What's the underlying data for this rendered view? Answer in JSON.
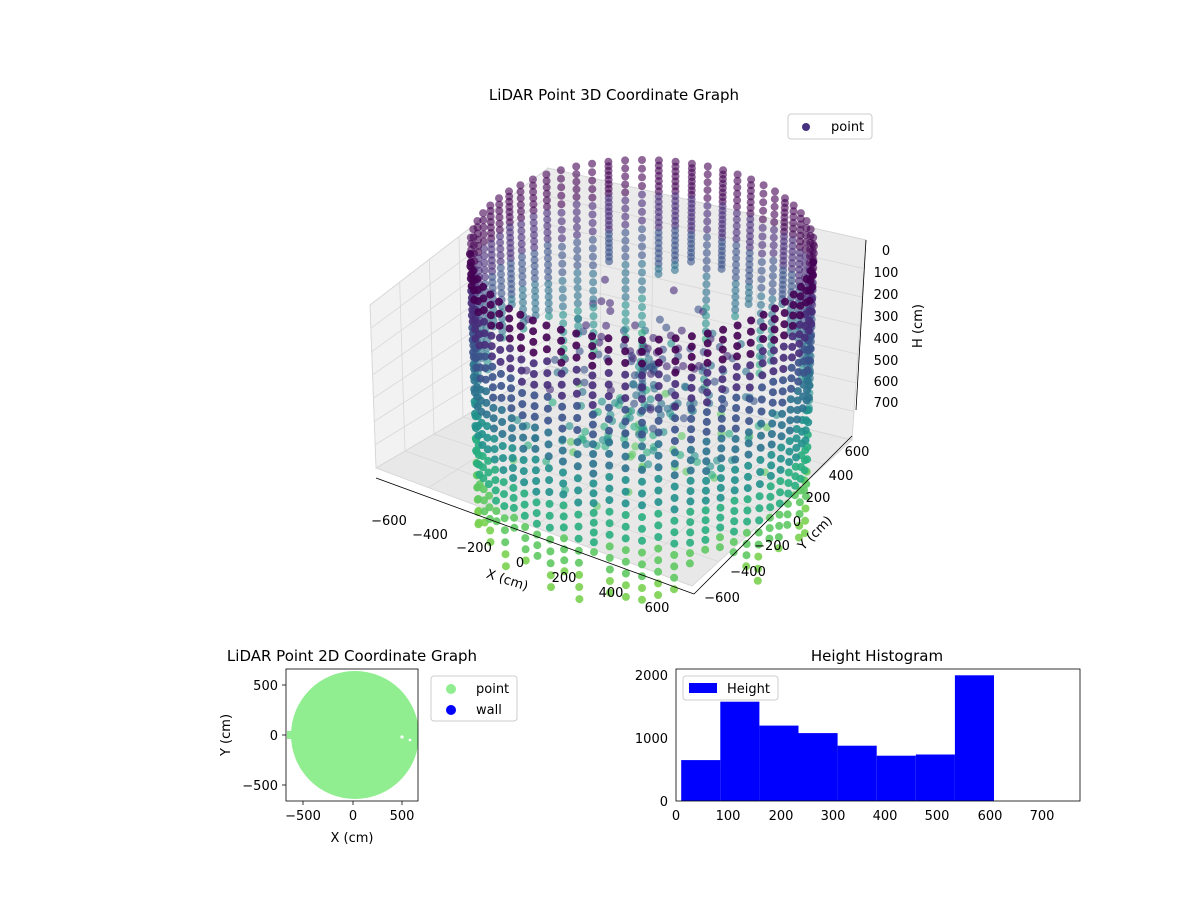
{
  "charts": {
    "3d": {
      "title": "LiDAR Point 3D Coordinate Graph",
      "legend": "point",
      "legend_color": "#46327e",
      "colormap": [
        "#440154",
        "#472c7a",
        "#3b528b",
        "#2c728e",
        "#21918c",
        "#28ae80",
        "#5ec962",
        "#7ad151"
      ],
      "xlabel": "X (cm)",
      "ylabel": "Y (cm)",
      "zlabel": "H (cm)",
      "xticks": [
        "−600",
        "−400",
        "−200",
        "0",
        "200",
        "400",
        "600"
      ],
      "yticks": [
        "600",
        "400",
        "200",
        "0",
        "−200",
        "−400",
        "−600"
      ],
      "zticks": [
        "0",
        "100",
        "200",
        "300",
        "400",
        "500",
        "600",
        "700"
      ]
    },
    "2d": {
      "title": "LiDAR Point 2D Coordinate Graph",
      "xlabel": "X (cm)",
      "ylabel": "Y (cm)",
      "xticks": [
        "−500",
        "0",
        "500"
      ],
      "yticks": [
        "500",
        "0",
        "−500"
      ],
      "legend": [
        {
          "label": "point",
          "color": "#90ee90"
        },
        {
          "label": "wall",
          "color": "#0000ff"
        }
      ]
    },
    "hist": {
      "title": "Height Histogram",
      "legend": "Height",
      "color": "#0000ff",
      "xticks": [
        "0",
        "100",
        "200",
        "300",
        "400",
        "500",
        "600",
        "700"
      ],
      "yticks": [
        "0",
        "1000",
        "2000"
      ]
    }
  },
  "chart_data": [
    {
      "type": "scatter",
      "title": "LiDAR Point 3D Coordinate Graph",
      "xlabel": "X (cm)",
      "ylabel": "Y (cm)",
      "zlabel": "H (cm)",
      "xlim": [
        -650,
        650
      ],
      "ylim": [
        -650,
        650
      ],
      "zlim": [
        780,
        0
      ],
      "colored_by": "height (viridis, reversed)",
      "description_points": "cylindrical wall of vertical point strands, radius ~600 cm, heights 0-760 cm, plus interior clutter",
      "legend": [
        "point"
      ]
    },
    {
      "type": "scatter",
      "title": "LiDAR Point 2D Coordinate Graph",
      "xlabel": "X (cm)",
      "ylabel": "Y (cm)",
      "xlim": [
        -670,
        670
      ],
      "ylim": [
        -670,
        670
      ],
      "series": [
        {
          "name": "point",
          "color": "#90ee90",
          "shape": "filled disc radius ~640 cm"
        },
        {
          "name": "wall",
          "color": "#0000ff",
          "values": []
        }
      ]
    },
    {
      "type": "bar",
      "title": "Height Histogram",
      "xlim": [
        0,
        775
      ],
      "ylim": [
        0,
        2100
      ],
      "series": [
        {
          "name": "Height",
          "bins": [
            [
              10,
              85,
              650
            ],
            [
              85,
              160,
              1580
            ],
            [
              160,
              235,
              1200
            ],
            [
              235,
              310,
              1080
            ],
            [
              310,
              385,
              880
            ],
            [
              385,
              460,
              720
            ],
            [
              460,
              535,
              740
            ],
            [
              535,
              610,
              2000
            ]
          ]
        }
      ]
    }
  ]
}
